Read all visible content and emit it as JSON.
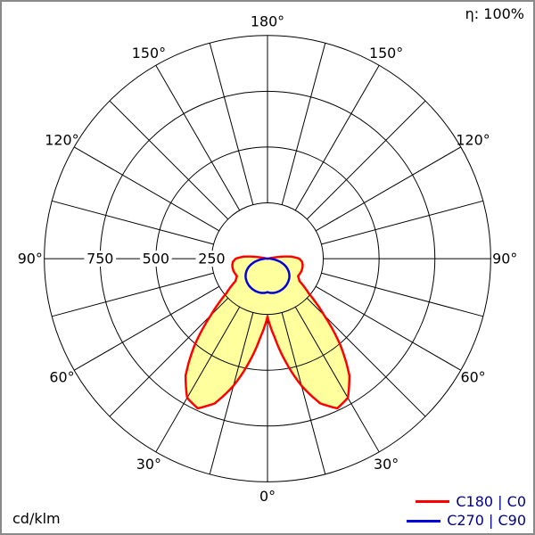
{
  "header": {
    "efficiency_label": "η: 100%"
  },
  "footer": {
    "unit_label": "cd/klm"
  },
  "legend": [
    {
      "label": "C180 | C0",
      "color": "#ff0000"
    },
    {
      "label": "C270 | C90",
      "color": "#0000dd"
    }
  ],
  "colors": {
    "background": "#ffffff",
    "frame": "#8a8a8a",
    "grid": "#000000",
    "text": "#000000",
    "legend_text": "#00008b",
    "beam_fill": "#ffff9e"
  },
  "chart_data": {
    "type": "polar",
    "subtype": "luminous-intensity-distribution",
    "unit": "cd/klm",
    "efficiency_label": "η: 100%",
    "angle_step_deg": 15,
    "angle_labels_deg": [
      0,
      30,
      60,
      90,
      120,
      150,
      180
    ],
    "radial_ticks": [
      250,
      500,
      750
    ],
    "r_max": 1000,
    "grid": true,
    "series": [
      {
        "id": "c0-c180",
        "name": "C180 | C0",
        "color": "#ff0000",
        "fill": "#ffff9e",
        "symmetric": true,
        "gamma_deg": [
          0,
          5,
          10,
          15,
          20,
          25,
          30,
          35,
          40,
          45,
          50,
          55,
          60,
          65,
          70,
          75,
          80,
          85,
          90,
          95,
          100,
          102
        ],
        "values_cd_per_klm": [
          260,
          350,
          470,
          590,
          690,
          740,
          720,
          640,
          510,
          360,
          240,
          175,
          158,
          160,
          162,
          162,
          160,
          155,
          142,
          105,
          35,
          0
        ]
      },
      {
        "id": "c90-c270",
        "name": "C270 | C90",
        "color": "#0000dd",
        "fill": "none",
        "symmetric": true,
        "gamma_deg": [
          0,
          5,
          10,
          15,
          20,
          25,
          30,
          35,
          40,
          45,
          50,
          55,
          60,
          65,
          70,
          75,
          80,
          85,
          90,
          92
        ],
        "values_cd_per_klm": [
          150,
          154,
          156,
          156,
          155,
          153,
          150,
          146,
          141,
          135,
          128,
          119,
          108,
          95,
          80,
          62,
          42,
          22,
          8,
          0
        ]
      }
    ]
  }
}
